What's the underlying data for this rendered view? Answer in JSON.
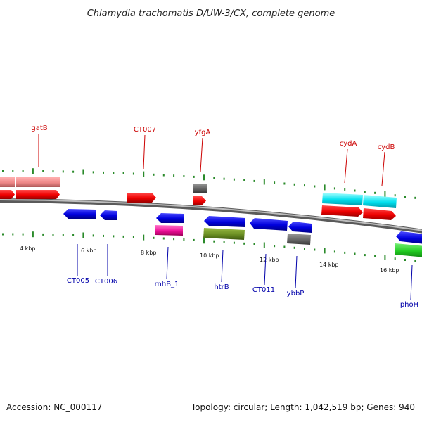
{
  "title": "Chlamydia trachomatis D/UW-3/CX, complete genome",
  "footer": {
    "accession": "Accession: NC_000117",
    "summary": "Topology: circular; Length: 1,042,519 bp; Genes: 940"
  },
  "colors": {
    "forward_label": "#cc0000",
    "reverse_label": "#0000aa",
    "tick": "#2a8a2a",
    "backbone": "#7a7a7a"
  },
  "tick_labels": [
    "4 kbp",
    "6 kbp",
    "8 kbp",
    "10 kbp",
    "12 kbp",
    "14 kbp",
    "16 kbp"
  ],
  "gene_labels": {
    "forward": [
      "gatB",
      "CT007",
      "yfgA",
      "cydA",
      "cydB"
    ],
    "reverse": [
      "CT005",
      "CT006",
      "rnhB_1",
      "htrB",
      "CT011",
      "ybbP",
      "phoH"
    ]
  }
}
